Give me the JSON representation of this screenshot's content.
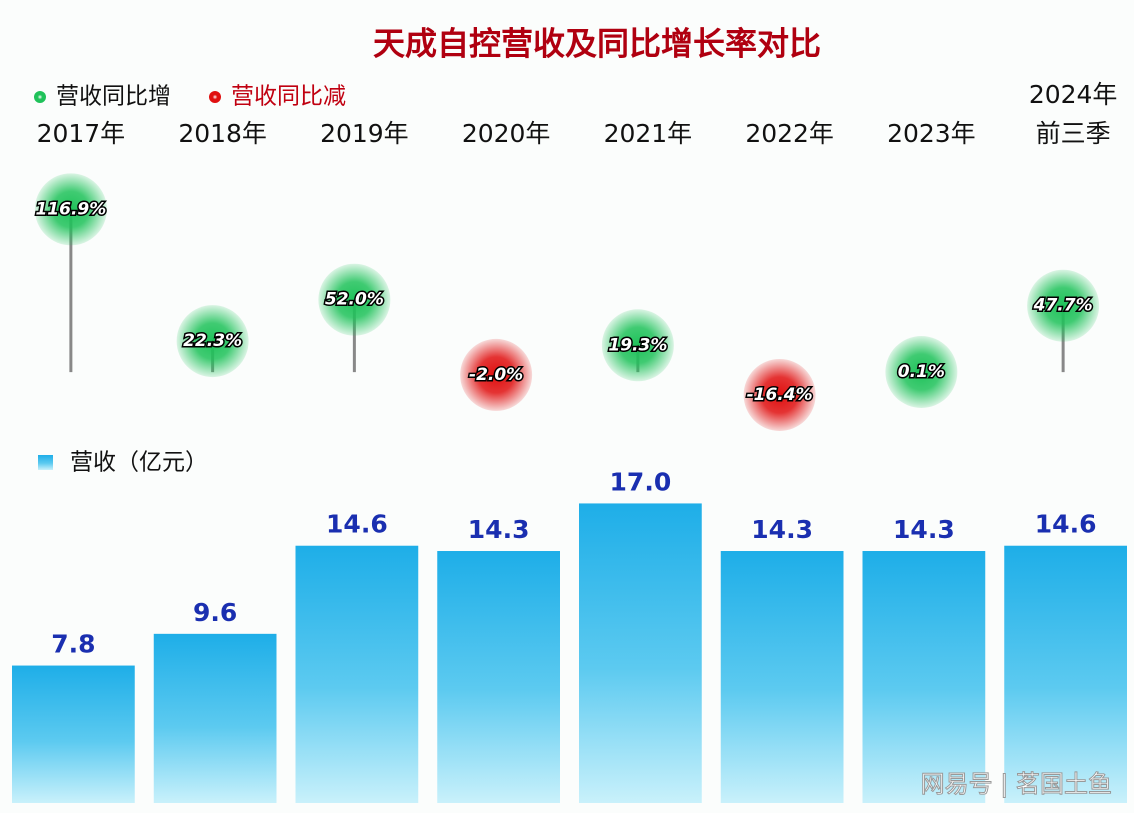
{
  "chart_data": [
    {
      "type": "lollipop",
      "title": "天成自控营收及同比增长率对比",
      "categories": [
        "2017年",
        "2018年",
        "2019年",
        "2020年",
        "2021年",
        "2022年",
        "2023年",
        "2024年\n前三季"
      ],
      "values": [
        116.9,
        22.3,
        52.0,
        -2.0,
        19.3,
        -16.4,
        0.1,
        47.7
      ],
      "value_labels": [
        "116.9%",
        "22.3%",
        "52.0%",
        "-2.0%",
        "19.3%",
        "-16.4%",
        "0.1%",
        "47.7%"
      ],
      "legend": [
        {
          "name": "营收同比增",
          "color": "#1fc25a"
        },
        {
          "name": "营收同比减",
          "color": "#e01010"
        }
      ],
      "ylim": [
        -20,
        120
      ]
    },
    {
      "type": "bar",
      "name": "营收（亿元）",
      "color": "#1eaee8",
      "values": [
        7.8,
        9.6,
        14.6,
        14.3,
        17.0,
        14.3,
        14.3,
        14.6
      ],
      "value_labels": [
        "7.8",
        "9.6",
        "14.6",
        "14.3",
        "17.0",
        "14.3",
        "14.3",
        "14.6"
      ],
      "ylim": [
        0,
        18.5
      ]
    }
  ],
  "watermark": "网易号 | 茗国土鱼"
}
